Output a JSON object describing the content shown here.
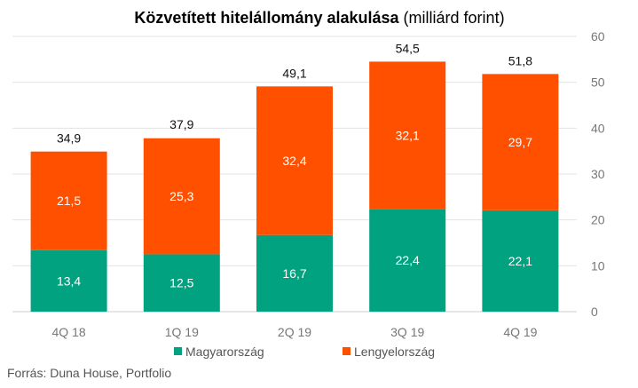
{
  "chart_data": {
    "type": "bar",
    "stacked": true,
    "title": "Közvetített hitelállomány alakulása",
    "title_unit": "(milliárd forint)",
    "categories": [
      "4Q 18",
      "1Q 19",
      "2Q 19",
      "3Q 19",
      "4Q 19"
    ],
    "series": [
      {
        "name": "Magyarország",
        "color": "#00a27f",
        "values": [
          13.4,
          12.5,
          16.7,
          22.4,
          22.1
        ],
        "labels": [
          "13,4",
          "12,5",
          "16,7",
          "22,4",
          "22,1"
        ]
      },
      {
        "name": "Lengyelország",
        "color": "#ff5000",
        "values": [
          21.5,
          25.3,
          32.4,
          32.1,
          29.7
        ],
        "labels": [
          "21,5",
          "25,3",
          "32,4",
          "32,1",
          "29,7"
        ]
      }
    ],
    "totals": [
      34.9,
      37.9,
      49.1,
      54.5,
      51.8
    ],
    "total_labels": [
      "34,9",
      "37,9",
      "49,1",
      "54,5",
      "51,8"
    ],
    "ylim": [
      0,
      60
    ],
    "yticks": [
      0,
      10,
      20,
      30,
      40,
      50,
      60
    ],
    "y_axis_side": "right",
    "grid": true,
    "legend_position": "bottom"
  },
  "source_text": "Forrás: Duna House, Portfolio"
}
